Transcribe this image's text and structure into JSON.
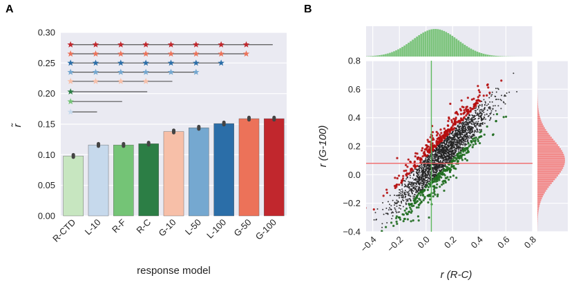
{
  "panels": {
    "a": "A",
    "b": "B"
  },
  "chart_data": [
    {
      "type": "bar",
      "panel": "A",
      "categories": [
        "R-CTD",
        "L-10",
        "R-F",
        "R-C",
        "G-10",
        "L-50",
        "L-100",
        "G-50",
        "G-100"
      ],
      "values": [
        0.098,
        0.116,
        0.116,
        0.118,
        0.138,
        0.144,
        0.151,
        0.159,
        0.159
      ],
      "errors": [
        0.002,
        0.002,
        0.002,
        0.002,
        0.002,
        0.002,
        0.002,
        0.002,
        0.002
      ],
      "colors": [
        "#c7e6c0",
        "#c6d9ec",
        "#74c476",
        "#2c7e45",
        "#f7bfa8",
        "#75a8d0",
        "#2b6ea8",
        "#ec7259",
        "#c1272d"
      ],
      "xlabel": "response model",
      "ylabel": "r̃",
      "ylim": [
        0,
        0.3
      ],
      "yticks": [
        "0.00",
        "0.05",
        "0.10",
        "0.15",
        "0.20",
        "0.25",
        "0.30"
      ],
      "grid": true,
      "significance": [
        {
          "color": "#c1272d",
          "y": 0.28,
          "from": 0,
          "stars": [
            1,
            2,
            3,
            4,
            5,
            6,
            7
          ],
          "end": 8
        },
        {
          "color": "#ec7259",
          "y": 0.265,
          "from": 0,
          "stars": [
            1,
            2,
            3,
            4,
            5,
            6,
            7
          ],
          "end": 7
        },
        {
          "color": "#2b6ea8",
          "y": 0.25,
          "from": 0,
          "stars": [
            1,
            2,
            3,
            4,
            5,
            6
          ],
          "end": 6
        },
        {
          "color": "#75a8d0",
          "y": 0.235,
          "from": 0,
          "stars": [
            1,
            2,
            3,
            4,
            5
          ],
          "end": 5
        },
        {
          "color": "#f7bfa8",
          "y": 0.22,
          "from": 0,
          "stars": [
            1,
            2,
            3
          ],
          "end": 4
        },
        {
          "color": "#2c7e45",
          "y": 0.203,
          "from": 0,
          "stars": [],
          "end": 3
        },
        {
          "color": "#74c476",
          "y": 0.187,
          "from": 0,
          "stars": [],
          "end": 2
        },
        {
          "color": "#c6d9ec",
          "y": 0.17,
          "from": 0,
          "stars": [],
          "end": 1
        }
      ]
    },
    {
      "type": "scatter",
      "panel": "B",
      "xlabel": "r (R-C)",
      "ylabel": "r (G-100)",
      "xlim": [
        -0.45,
        0.8
      ],
      "ylim": [
        -0.4,
        0.8
      ],
      "xticks": [
        "−0.4",
        "−0.2",
        "0.0",
        "0.2",
        "0.4",
        "0.6",
        "0.8"
      ],
      "yticks": [
        "−0.4",
        "−0.2",
        "0.0",
        "0.2",
        "0.4",
        "0.6",
        "0.8"
      ],
      "reference_lines": {
        "x": 0.04,
        "y": 0.08
      },
      "series": [
        {
          "color": "#222222"
        },
        {
          "color": "#b50d0d"
        },
        {
          "color": "#1f6b1f"
        }
      ],
      "marginal_x_color": "#7cc47c",
      "marginal_y_color": "#f28a8a",
      "grid": true
    }
  ]
}
